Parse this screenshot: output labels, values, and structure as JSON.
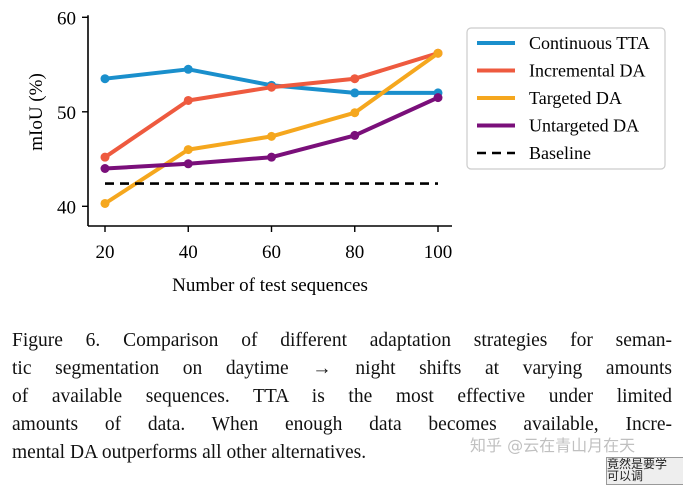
{
  "chart_data": {
    "type": "line",
    "x": [
      20,
      40,
      60,
      80,
      100
    ],
    "xlabel": "Number of test sequences",
    "ylabel": "mIoU (%)",
    "ylim": [
      38,
      60
    ],
    "xticks": [
      "20",
      "40",
      "60",
      "80",
      "100"
    ],
    "yticks": [
      "40",
      "50",
      "60"
    ],
    "legend_position": "top-right",
    "grid": false,
    "series": [
      {
        "name": "Continuous TTA",
        "color": "#1a8fcc",
        "values": [
          53.5,
          54.5,
          52.8,
          52.0,
          52.0
        ]
      },
      {
        "name": "Incremental DA",
        "color": "#ee5a3f",
        "values": [
          45.2,
          51.2,
          52.6,
          53.5,
          56.2
        ]
      },
      {
        "name": "Targeted DA",
        "color": "#f5a71e",
        "values": [
          40.3,
          46.0,
          47.4,
          49.9,
          56.2
        ]
      },
      {
        "name": "Untargeted DA",
        "color": "#7a0f7a",
        "values": [
          44.0,
          44.5,
          45.2,
          47.5,
          51.5
        ]
      },
      {
        "name": "Baseline",
        "color": "#000000",
        "style": "dashed",
        "values": [
          42.4,
          42.4,
          42.4,
          42.4,
          42.4
        ]
      }
    ]
  },
  "caption": [
    "Figure 6. Comparison of different adaptation strategies for seman-",
    "tic segmentation on daytime → night shifts at varying amounts",
    "of available sequences.  TTA is the most effective under limited",
    "amounts of data.  When enough data becomes available, Incre-",
    "mental DA outperforms all other alternatives."
  ],
  "watermark": "知乎 @云在青山月在天",
  "overlay_text": [
    "竟然是要学",
    "可以调"
  ]
}
